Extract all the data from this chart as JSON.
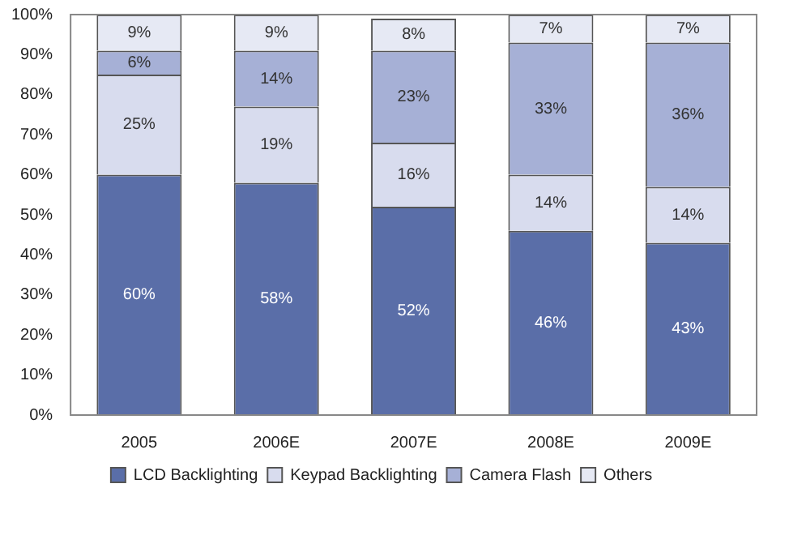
{
  "chart_data": {
    "type": "bar",
    "stacked": true,
    "categories": [
      "2005",
      "2006E",
      "2007E",
      "2008E",
      "2009E"
    ],
    "series": [
      {
        "name": "LCD Backlighting",
        "color": "#5a6ea8",
        "values": [
          60,
          58,
          52,
          46,
          43
        ],
        "value_labels": [
          "60%",
          "58%",
          "52%",
          "46%",
          "43%"
        ]
      },
      {
        "name": "Keypad Backlighting",
        "color": "#d8dcee",
        "values": [
          25,
          19,
          16,
          14,
          14
        ],
        "value_labels": [
          "25%",
          "19%",
          "16%",
          "14%",
          "14%"
        ]
      },
      {
        "name": "Camera Flash",
        "color": "#a6b0d6",
        "values": [
          6,
          14,
          23,
          33,
          36
        ],
        "value_labels": [
          "6%",
          "14%",
          "23%",
          "33%",
          "36%"
        ]
      },
      {
        "name": "Others",
        "color": "#e6e9f4",
        "values": [
          9,
          9,
          8,
          7,
          7
        ],
        "value_labels": [
          "9%",
          "9%",
          "8%",
          "7%",
          "7%"
        ]
      }
    ],
    "ylim": [
      0,
      100
    ],
    "yticks": [
      {
        "value": 0,
        "label": "0%"
      },
      {
        "value": 10,
        "label": "10%"
      },
      {
        "value": 20,
        "label": "20%"
      },
      {
        "value": 30,
        "label": "30%"
      },
      {
        "value": 40,
        "label": "40%"
      },
      {
        "value": 50,
        "label": "50%"
      },
      {
        "value": 60,
        "label": "60%"
      },
      {
        "value": 70,
        "label": "70%"
      },
      {
        "value": 80,
        "label": "80%"
      },
      {
        "value": 90,
        "label": "90%"
      },
      {
        "value": 100,
        "label": "100%"
      }
    ],
    "grid": false,
    "legend": "bottom"
  }
}
